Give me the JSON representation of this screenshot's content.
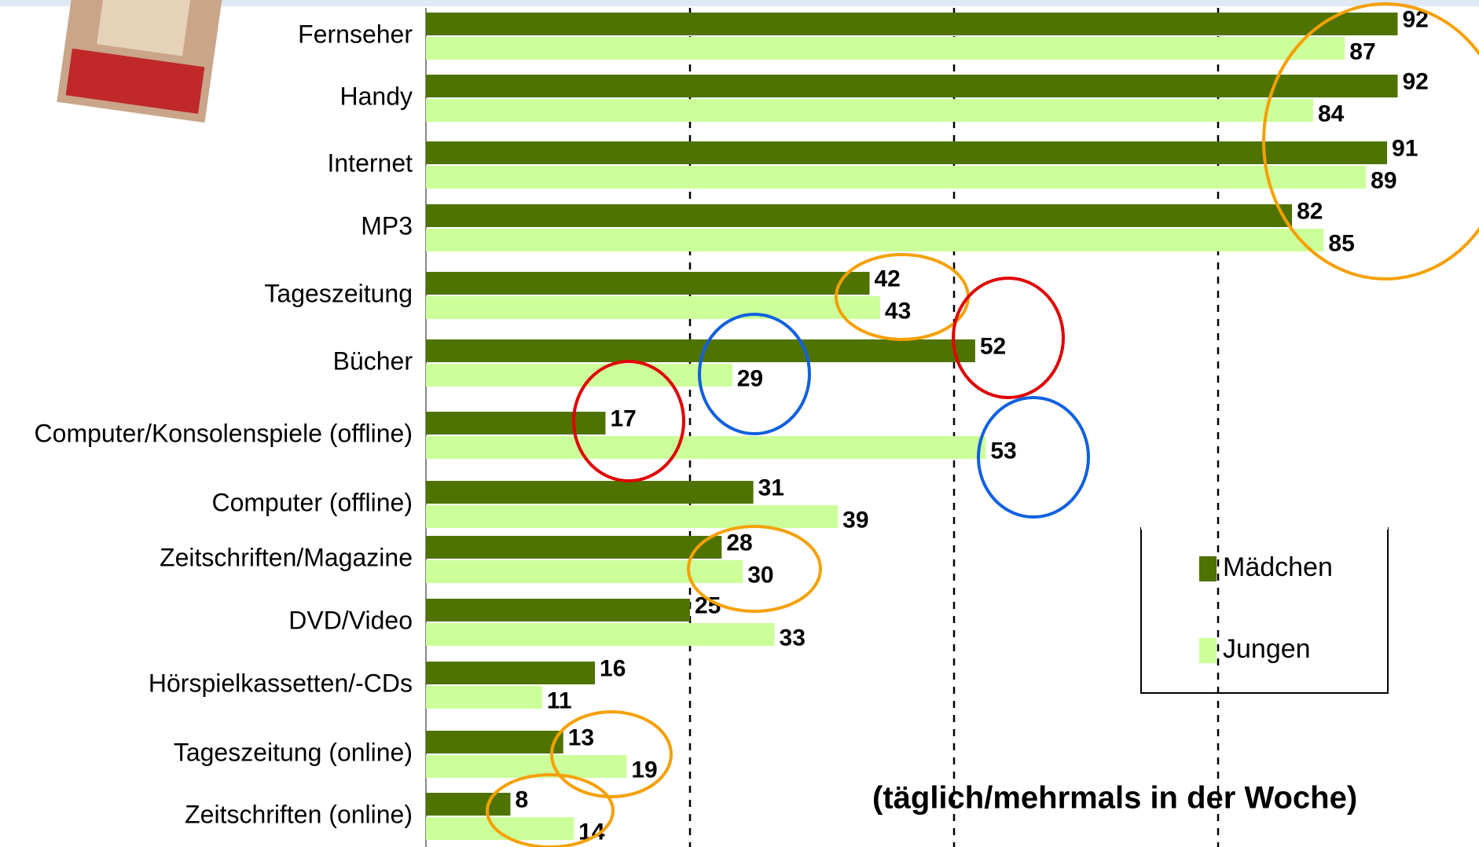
{
  "chart_data": {
    "type": "bar",
    "orientation": "horizontal",
    "annotation": "(täglich/mehrmals in der Woche)",
    "categories": [
      "Fernseher",
      "Handy",
      "Internet",
      "MP3",
      "Tageszeitung",
      "Bücher",
      "Computer/Konsolenspiele (offline)",
      "Computer (offline)",
      "Zeitschriften/Magazine",
      "DVD/Video",
      "Hörspielkassetten/-CDs",
      "Tageszeitung (online)",
      "Zeitschriften (online)"
    ],
    "series": [
      {
        "name": "Mädchen",
        "color": "#4f7300",
        "values": [
          92,
          92,
          91,
          82,
          42,
          52,
          17,
          31,
          28,
          25,
          16,
          13,
          8
        ]
      },
      {
        "name": "Jungen",
        "color": "#ccff99",
        "values": [
          87,
          84,
          89,
          85,
          43,
          29,
          53,
          39,
          30,
          33,
          11,
          19,
          14
        ]
      }
    ],
    "xlim": [
      0,
      100
    ],
    "xticks": [
      25,
      50,
      75
    ],
    "grid": true,
    "legend": "lower right"
  }
}
